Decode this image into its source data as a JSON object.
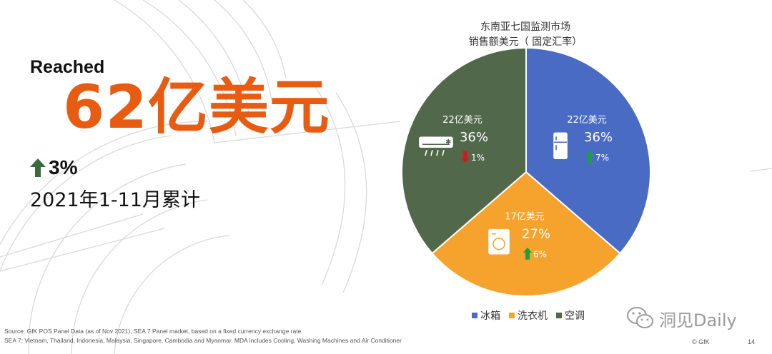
{
  "headline": {
    "reached": "Reached",
    "amount": "62亿美元",
    "growth": "3%",
    "period": "2021年1-11月累计"
  },
  "chart_title": {
    "line1": "东南亚七国监测市场",
    "line2": "销售额美元（ 固定汇率）"
  },
  "colors": {
    "accent": "#e85c12",
    "up_arrow": "#1e9e3e",
    "headline_arrow": "#3a6b3f",
    "down_arrow": "#c81e1e",
    "fridge": "#4a6bc4",
    "washer": "#f6a32e",
    "ac": "#52684b"
  },
  "chart_data": {
    "type": "pie",
    "slices": [
      {
        "name": "冰箱",
        "share": 36,
        "value_label": "22亿美元",
        "pct_label": "36%",
        "growth": "7%",
        "growth_dir": "up",
        "color": "#4a6bc4",
        "icon": "fridge-icon"
      },
      {
        "name": "洗衣机",
        "share": 27,
        "value_label": "17亿美元",
        "pct_label": "27%",
        "growth": "6%",
        "growth_dir": "up",
        "color": "#f6a32e",
        "icon": "washer-icon"
      },
      {
        "name": "空调",
        "share": 36,
        "value_label": "22亿美元",
        "pct_label": "36%",
        "growth": "1%",
        "growth_dir": "down",
        "color": "#52684b",
        "icon": "ac-icon"
      }
    ],
    "legend": [
      "冰箱",
      "洗衣机",
      "空调"
    ],
    "legend_position": "bottom"
  },
  "watermark": "洞见Daily",
  "footer": {
    "source_line1": "Source: GfK POS Panel Data (as of Nov 2021), SEA 7 Panel market, based on a fixed currency exchange rate.",
    "source_line2": "SEA 7: Vietnam, Thailand, Indonesia, Malaysia, Singapore, Cambodia and Myanmar. MDA includes Cooling, Washing Machines and Air Conditioner",
    "copyright": "© GfK",
    "page": "14"
  }
}
